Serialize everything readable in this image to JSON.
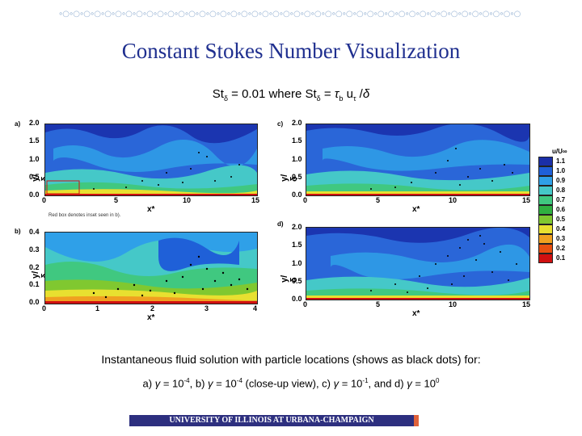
{
  "decoration": "∘○∘○∘○∘○∘○∘○∘○∘○∘○∘○∘○∘○∘○∘○∘○∘○∘○∘○∘○∘○∘○∘○∘○∘○∘○∘○∘○∘○∘○∘○∘○∘○∘○∘○∘○∘○∘○∘○∘○∘○∘○∘○∘○∘○",
  "title": "Constant Stokes Number Visualization",
  "subtitle": "Stδ = 0.01 where Stδ = τb uτ /δ",
  "panels": {
    "a": {
      "label": "a)",
      "ylabel": "y/δ",
      "xlabel": "x*",
      "yticks": [
        "2.0",
        "1.5",
        "1.0",
        "0.5",
        "0.0"
      ],
      "xticks": [
        "0",
        "5",
        "10",
        "15"
      ]
    },
    "b": {
      "label": "b)",
      "ylabel": "y/δ",
      "xlabel": "x*",
      "yticks": [
        "0.4",
        "0.3",
        "0.2",
        "0.1",
        "0.0"
      ],
      "xticks": [
        "0",
        "1",
        "2",
        "3",
        "4"
      ]
    },
    "c": {
      "label": "c)",
      "ylabel": "y/δ",
      "xlabel": "x*",
      "yticks": [
        "2.0",
        "1.5",
        "1.0",
        "0.5",
        "0.0"
      ],
      "xticks": [
        "0",
        "5",
        "10",
        "15"
      ]
    },
    "d": {
      "label": "d)",
      "ylabel": "y/δ",
      "xlabel": "x*",
      "yticks": [
        "2.0",
        "1.5",
        "1.0",
        "0.5",
        "0.0"
      ],
      "xticks": [
        "0",
        "5",
        "10",
        "15"
      ]
    }
  },
  "inset_note": "Red box denotes inset seen in b).",
  "legend": {
    "title": "u/U∞",
    "levels": [
      {
        "value": "1.1",
        "color": "#1b2fa8"
      },
      {
        "value": "1.0",
        "color": "#1f60d8"
      },
      {
        "value": "0.9",
        "color": "#2fa0e8"
      },
      {
        "value": "0.8",
        "color": "#45c8c8"
      },
      {
        "value": "0.7",
        "color": "#40c880"
      },
      {
        "value": "0.6",
        "color": "#30b040"
      },
      {
        "value": "0.5",
        "color": "#80c830"
      },
      {
        "value": "0.4",
        "color": "#e8e030"
      },
      {
        "value": "0.3",
        "color": "#f0a020"
      },
      {
        "value": "0.2",
        "color": "#e85010"
      },
      {
        "value": "0.1",
        "color": "#d01010"
      }
    ]
  },
  "caption_line1": "Instantaneous fluid solution with particle locations (shows as black dots) for:",
  "caption_line2": "a) γ = 10-4, b) γ = 10-4 (close-up view), c) γ = 10-1, and d) γ = 100",
  "footer": "UNIVERSITY OF ILLINOIS AT URBANA-CHAMPAIGN"
}
